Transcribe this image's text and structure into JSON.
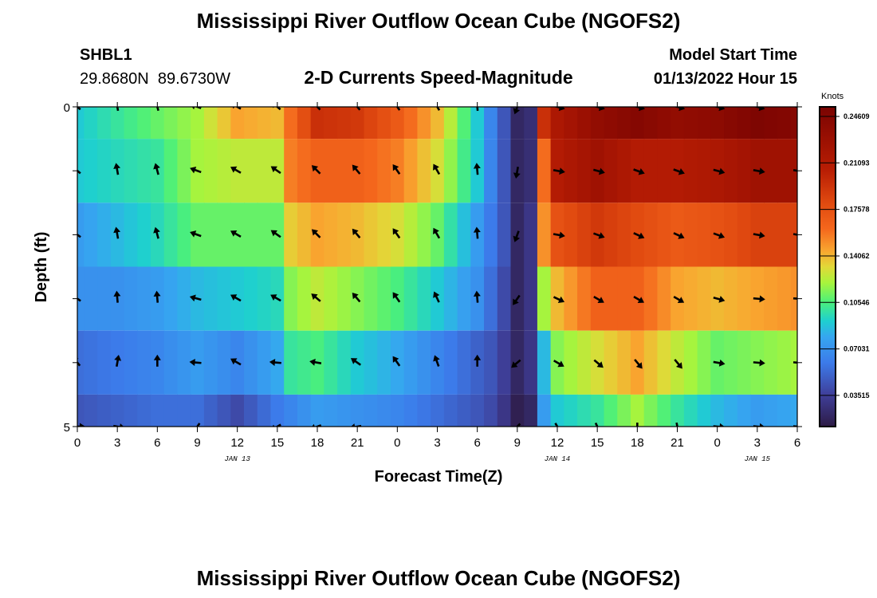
{
  "header": {
    "title": "Mississippi River Outflow Ocean Cube (NGOFS2)",
    "station": "SHBL1",
    "coords": "29.8680N  89.6730W",
    "subtitle": "2-D Currents Speed-Magnitude",
    "model_label": "Model Start Time",
    "model_time": "01/13/2022 Hour 15"
  },
  "footer": {
    "title": "Mississippi River Outflow Ocean Cube (NGOFS2)"
  },
  "chart_data": {
    "type": "heatmap",
    "title": "2-D Currents Speed-Magnitude",
    "xlabel": "Forecast Time(Z)",
    "ylabel": "Depth (ft)",
    "xlim_hours": [
      0,
      54
    ],
    "ylim": [
      0,
      5
    ],
    "ytick_labels": [
      "0",
      "5"
    ],
    "xtick_labels": [
      "0",
      "3",
      "6",
      "9",
      "12",
      "15",
      "18",
      "21",
      "0",
      "3",
      "6",
      "9",
      "12",
      "15",
      "18",
      "21",
      "0",
      "3",
      "6"
    ],
    "date_labels": [
      {
        "hour": 12,
        "text": "JAN 13"
      },
      {
        "hour": 36,
        "text": "JAN 14"
      },
      {
        "hour": 51,
        "text": "JAN 15"
      }
    ],
    "depth_levels": [
      0,
      1,
      2,
      3,
      4,
      5
    ],
    "x_hours": [
      0,
      3,
      6,
      9,
      12,
      15,
      16,
      18,
      21,
      24,
      27,
      30,
      31,
      32,
      33,
      34,
      35,
      36,
      39,
      42,
      45,
      48,
      51,
      54
    ],
    "speed_knots": [
      [
        0.09,
        0.1,
        0.11,
        0.12,
        0.145,
        0.14,
        0.16,
        0.195,
        0.19,
        0.17,
        0.14,
        0.09,
        0.065,
        0.045,
        0.02,
        0.025,
        0.195,
        0.215,
        0.235,
        0.245,
        0.235,
        0.24,
        0.25,
        0.245
      ],
      [
        0.09,
        0.095,
        0.1,
        0.12,
        0.125,
        0.125,
        0.155,
        0.165,
        0.165,
        0.155,
        0.13,
        0.09,
        0.065,
        0.045,
        0.02,
        0.025,
        0.16,
        0.21,
        0.225,
        0.21,
        0.21,
        0.215,
        0.225,
        0.225
      ],
      [
        0.075,
        0.085,
        0.095,
        0.11,
        0.11,
        0.11,
        0.135,
        0.145,
        0.14,
        0.13,
        0.11,
        0.075,
        0.06,
        0.045,
        0.02,
        0.03,
        0.15,
        0.175,
        0.19,
        0.18,
        0.17,
        0.175,
        0.185,
        0.185
      ],
      [
        0.07,
        0.07,
        0.075,
        0.085,
        0.09,
        0.095,
        0.115,
        0.125,
        0.115,
        0.105,
        0.09,
        0.07,
        0.055,
        0.04,
        0.02,
        0.03,
        0.12,
        0.14,
        0.165,
        0.165,
        0.145,
        0.14,
        0.145,
        0.15
      ],
      [
        0.055,
        0.06,
        0.065,
        0.075,
        0.065,
        0.08,
        0.1,
        0.105,
        0.09,
        0.08,
        0.065,
        0.05,
        0.045,
        0.035,
        0.02,
        0.03,
        0.085,
        0.115,
        0.13,
        0.145,
        0.125,
        0.11,
        0.115,
        0.12
      ],
      [
        0.045,
        0.05,
        0.055,
        0.055,
        0.04,
        0.06,
        0.065,
        0.075,
        0.07,
        0.065,
        0.055,
        0.045,
        0.04,
        0.03,
        0.015,
        0.02,
        0.075,
        0.09,
        0.1,
        0.12,
        0.1,
        0.085,
        0.075,
        0.08
      ]
    ],
    "arrow_hours": [
      0,
      3,
      6,
      9,
      12,
      15,
      18,
      21,
      24,
      27,
      30,
      33,
      36,
      39,
      42,
      45,
      48,
      51,
      54
    ],
    "arrow_direction_deg": [
      [
        130,
        170,
        165,
        110,
        120,
        130,
        135,
        140,
        145,
        150,
        175,
        20,
        285,
        285,
        285,
        285,
        285,
        285,
        285
      ],
      [
        130,
        170,
        165,
        110,
        120,
        125,
        135,
        140,
        145,
        150,
        175,
        10,
        280,
        285,
        290,
        290,
        285,
        280,
        280
      ],
      [
        125,
        170,
        165,
        110,
        120,
        125,
        135,
        140,
        145,
        150,
        175,
        20,
        280,
        290,
        295,
        295,
        290,
        280,
        280
      ],
      [
        125,
        175,
        175,
        105,
        120,
        120,
        130,
        140,
        145,
        155,
        175,
        35,
        295,
        300,
        300,
        300,
        285,
        275,
        275
      ],
      [
        140,
        190,
        180,
        95,
        120,
        95,
        100,
        125,
        145,
        160,
        180,
        50,
        300,
        310,
        320,
        320,
        280,
        275,
        275
      ],
      [
        270,
        280,
        null,
        35,
        null,
        60,
        70,
        80,
        null,
        null,
        null,
        45,
        330,
        335,
        0,
        350,
        275,
        275,
        275
      ]
    ],
    "colorbar": {
      "label": "Knots",
      "range": [
        0.0116,
        0.2533
      ],
      "ticks": [
        0.24609,
        0.21093,
        0.17578,
        0.14062,
        0.10546,
        0.07031,
        0.03515
      ],
      "tick_labels": [
        "0.24609",
        "0.21093",
        "0.17578",
        "0.14062",
        "0.10546",
        "0.07031",
        "0.03515"
      ],
      "colors": [
        "#2d1b45",
        "#3f3f9a",
        "#3c7bea",
        "#36a6f0",
        "#1ecfd0",
        "#4cf07a",
        "#a8f43c",
        "#e2d838",
        "#f9a630",
        "#f4661c",
        "#e04a10",
        "#b91e04",
        "#9a1002",
        "#7a0402"
      ],
      "stops": [
        0,
        0.1,
        0.2,
        0.28,
        0.33,
        0.39,
        0.45,
        0.5,
        0.55,
        0.62,
        0.7,
        0.8,
        0.9,
        1
      ]
    }
  }
}
